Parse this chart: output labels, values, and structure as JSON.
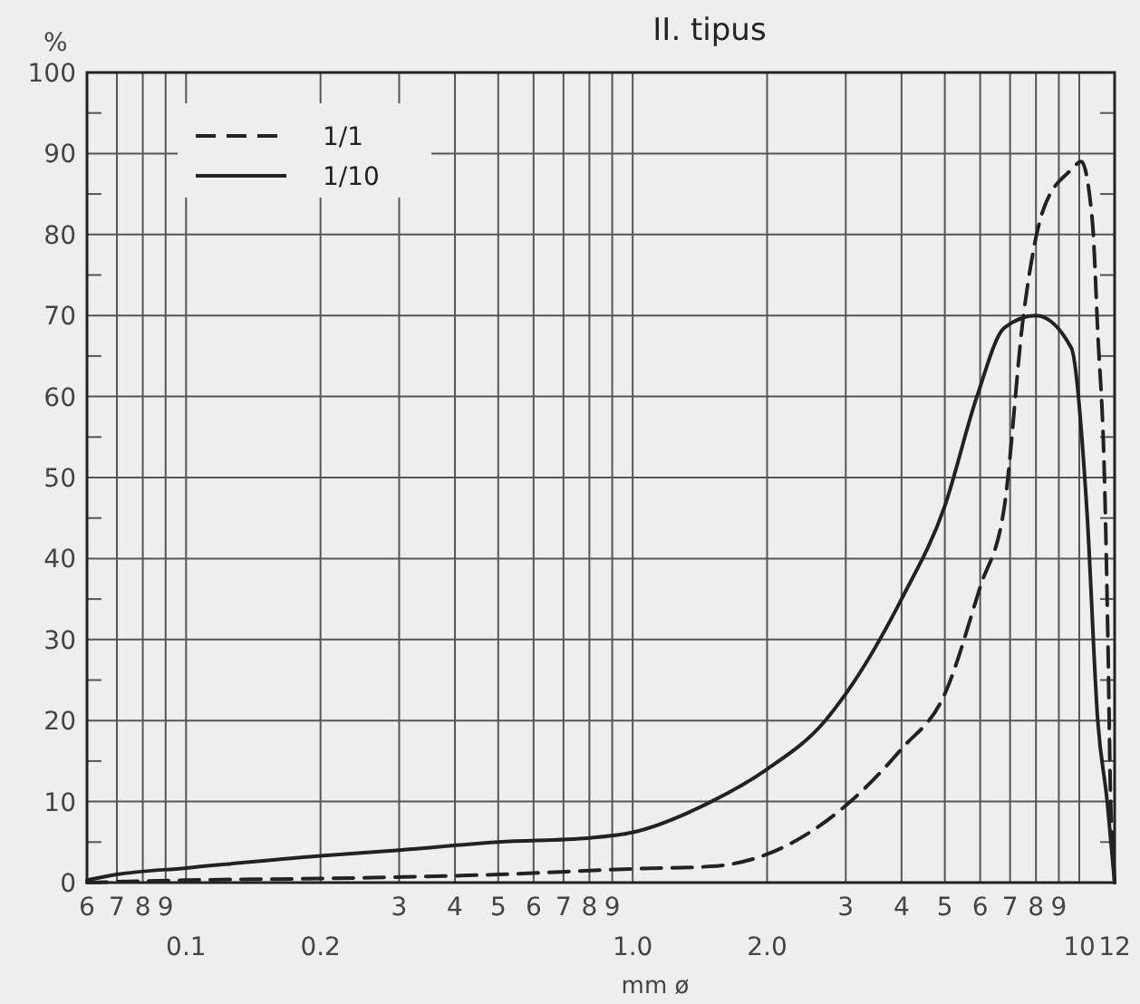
{
  "chart_data": {
    "type": "line",
    "title": "II. tipus",
    "xlabel": "mm ø",
    "ylabel": "%",
    "x": [
      0.06,
      0.07,
      0.1,
      0.2,
      0.3,
      0.5,
      0.8,
      1.0,
      1.5,
      2.0,
      2.7,
      3.0,
      4.0,
      5.0,
      5.9,
      6.8,
      8.0,
      9.6,
      10.4,
      11.0,
      11.55,
      12
    ],
    "series": [
      {
        "name": "1/1",
        "color": "#222222",
        "line_style": "dashed",
        "x": [
          0.06,
          0.1,
          0.2,
          0.5,
          1.0,
          1.5,
          2.0,
          3.0,
          4.0,
          5.0,
          6.0,
          6.8,
          7.5,
          8.3,
          9.6,
          10.1,
          10.7,
          11.0,
          11.4,
          11.6,
          11.75,
          11.9,
          12
        ],
        "values": [
          0,
          0.3,
          0.5,
          1,
          1.7,
          2,
          3.5,
          9.5,
          16.5,
          23.3,
          36.5,
          46.5,
          70,
          83,
          88,
          89,
          81.6,
          68,
          49,
          29,
          10.5,
          4,
          0
        ]
      },
      {
        "name": "1/10",
        "color": "#222222",
        "line_style": "solid",
        "values": [
          0.3,
          1,
          1.8,
          3.3,
          4,
          5,
          5.5,
          6.2,
          10,
          14,
          20,
          23.3,
          35,
          46.5,
          60,
          68.5,
          70,
          66,
          46,
          20,
          10,
          0
        ]
      }
    ],
    "log": "x",
    "xlim": [
      0.06,
      12
    ],
    "xticks": [
      {
        "value": 0.06,
        "label": null
      },
      {
        "value": 0.07,
        "label": null
      },
      {
        "value": 0.08,
        "label": null
      },
      {
        "value": 0.09,
        "label": null
      },
      0.1,
      0.2,
      {
        "value": 0.3,
        "label": null
      },
      {
        "value": 0.4,
        "label": null
      },
      {
        "value": 0.5,
        "label": null
      },
      {
        "value": 0.6,
        "label": null
      },
      {
        "value": 0.7,
        "label": null
      },
      {
        "value": 0.8,
        "label": null
      },
      {
        "value": 0.9,
        "label": null
      },
      {
        "value": 1,
        "label": "1.0"
      },
      {
        "value": 2,
        "label": "2.0"
      },
      {
        "value": 3,
        "label": null
      },
      {
        "value": 4,
        "label": null
      },
      {
        "value": 5,
        "label": null
      },
      {
        "value": 6,
        "label": null
      },
      {
        "value": 7,
        "label": null
      },
      {
        "value": 8,
        "label": null
      },
      {
        "value": 9,
        "label": null
      },
      10,
      12
    ],
    "annotations": [
      "6",
      "7",
      "8",
      "9",
      "3",
      "4",
      "5",
      "6",
      "7",
      "8",
      "9",
      "3",
      "4",
      "5",
      "6",
      "7",
      "8",
      "9"
    ],
    "ylim": [
      0,
      100
    ],
    "yticks": [
      0,
      {
        "value": 5,
        "label": null
      },
      10,
      {
        "value": 15,
        "label": null
      },
      20,
      {
        "value": 25,
        "label": null
      },
      30,
      {
        "value": 35,
        "label": null
      },
      40,
      {
        "value": 45,
        "label": null
      },
      50,
      {
        "value": 55,
        "label": null
      },
      60,
      {
        "value": 65,
        "label": null
      },
      70,
      {
        "value": 75,
        "label": null
      },
      80,
      {
        "value": 85,
        "label": null
      },
      90,
      {
        "value": 95,
        "label": null
      },
      100
    ],
    "grid": true,
    "legend": "top left",
    "marker": "none"
  }
}
